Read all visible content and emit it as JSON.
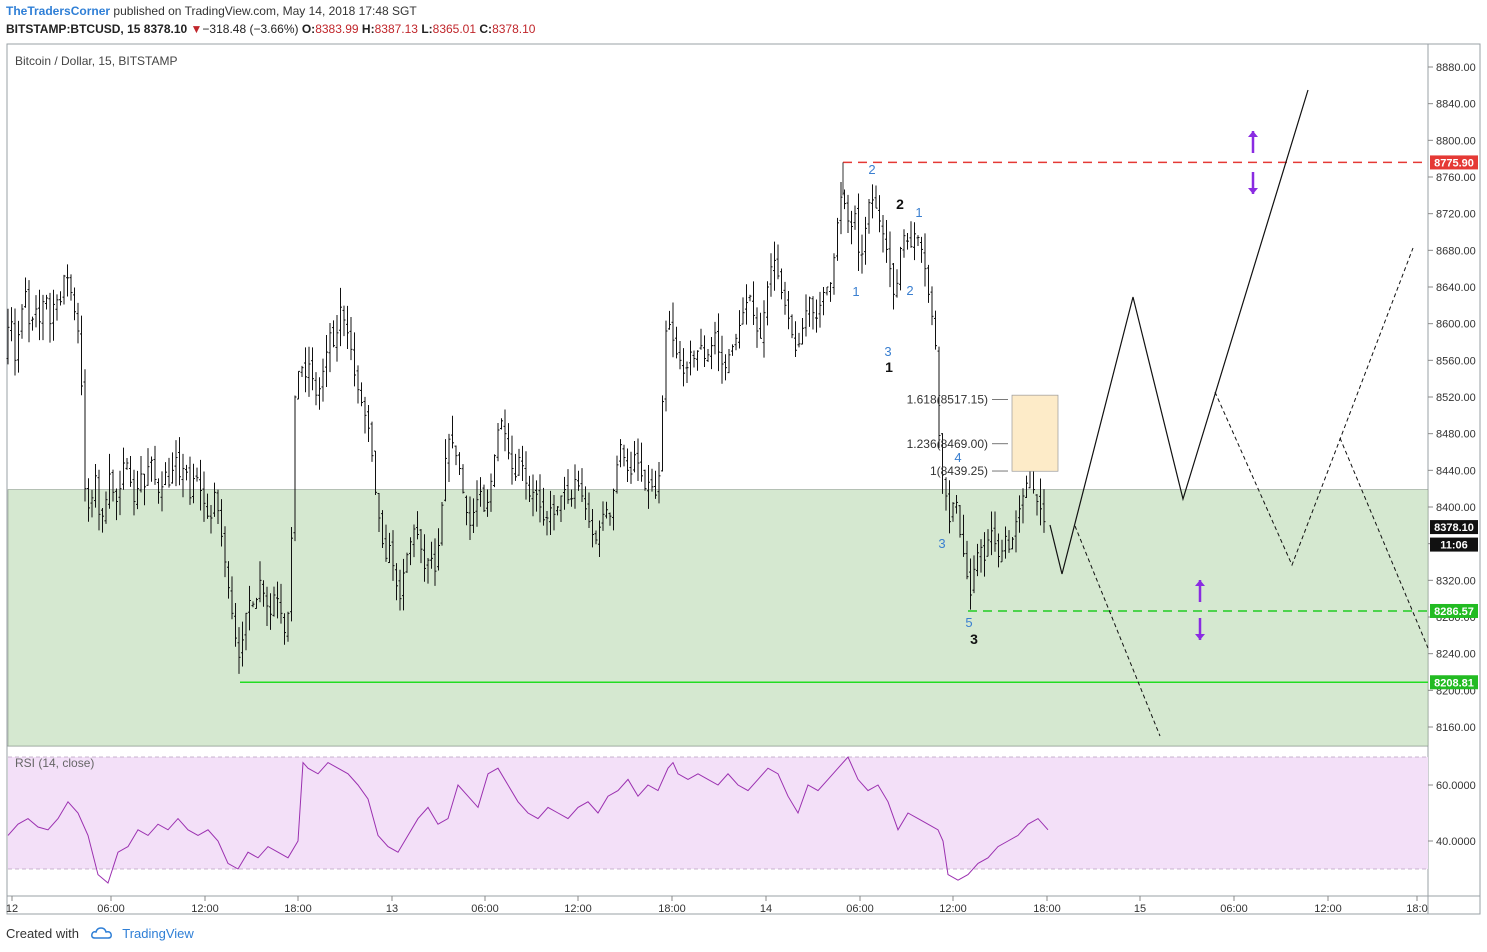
{
  "header": {
    "publisher": "TheTradersCorner",
    "published_text": "published on TradingView.com, May 14, 2018 17:48 SGT",
    "symbol": "BITSTAMP:BTCUSD, 15",
    "last": "8378.10",
    "change": "−318.48 (−3.66%)",
    "o_label": "O:",
    "o": "8383.99",
    "h_label": "H:",
    "h": "8387.13",
    "l_label": "L:",
    "l": "8365.01",
    "c_label": "C:",
    "c": "8378.10"
  },
  "footer": {
    "created_with": "Created with",
    "brand": "TradingView"
  },
  "colors": {
    "up_arrow": "#8a2be2",
    "resistance": "#e53935",
    "support_dashed": "#22cc22",
    "support_solid": "#22dd22",
    "zone_fill": "#d5e8d0",
    "rsi_fill": "#f3e0f8",
    "rsi_line": "#9b30b0",
    "fib_box": "#fdebc8",
    "wave_label_blue": "#3a7fd0"
  },
  "chart_data": [
    {
      "type": "candlestick",
      "title": "Bitcoin / Dollar, 15, BITSTAMP",
      "y_ticks": [
        "8880.00",
        "8840.00",
        "8800.00",
        "8760.00",
        "8720.00",
        "8680.00",
        "8640.00",
        "8600.00",
        "8560.00",
        "8520.00",
        "8480.00",
        "8440.00",
        "8400.00",
        "8360.00",
        "8320.00",
        "8280.00",
        "8240.00",
        "8200.00",
        "8160.00"
      ],
      "ylim": [
        8130,
        8905
      ],
      "x_ticks": [
        "12",
        "06:00",
        "12:00",
        "18:00",
        "13",
        "06:00",
        "12:00",
        "18:00",
        "14",
        "06:00",
        "12:00",
        "18:00",
        "15",
        "06:00",
        "12:00",
        "18:0"
      ],
      "price_labels": [
        {
          "text": "8775.90",
          "value": 8775.9,
          "color": "#e53935"
        },
        {
          "text": "8378.10",
          "value": 8378.1,
          "color": "#111111"
        },
        {
          "text": "11:06",
          "value": 8359,
          "color": "#111111"
        },
        {
          "text": "8286.57",
          "value": 8286.57,
          "color": "#22bb22"
        },
        {
          "text": "8208.81",
          "value": 8208.81,
          "color": "#22bb22"
        }
      ],
      "levels": {
        "resistance": 8775.9,
        "support_dashed": 8286.57,
        "support_solid": 8208.81,
        "zone_top": 8419
      },
      "fib_labels": [
        "1.618(8517.15)",
        "1.236(8469.00)",
        "1(8439.25)"
      ],
      "wave_labels": [
        "2",
        "2",
        "1",
        "1",
        "3",
        "1",
        "2",
        "4",
        "3",
        "5",
        "3"
      ],
      "close_path": [
        [
          0,
          8640
        ],
        [
          5,
          8560
        ],
        [
          10,
          8620
        ],
        [
          15,
          8560
        ],
        [
          20,
          8600
        ],
        [
          25,
          8640
        ],
        [
          30,
          8590
        ],
        [
          35,
          8620
        ],
        [
          40,
          8600
        ],
        [
          45,
          8640
        ],
        [
          50,
          8600
        ],
        [
          55,
          8630
        ],
        [
          60,
          8620
        ],
        [
          65,
          8660
        ],
        [
          70,
          8640
        ],
        [
          75,
          8610
        ],
        [
          80,
          8580
        ],
        [
          85,
          8420
        ],
        [
          90,
          8390
        ],
        [
          95,
          8440
        ],
        [
          100,
          8380
        ],
        [
          105,
          8400
        ],
        [
          110,
          8440
        ],
        [
          115,
          8400
        ],
        [
          120,
          8420
        ],
        [
          125,
          8460
        ],
        [
          130,
          8430
        ],
        [
          135,
          8400
        ],
        [
          140,
          8440
        ],
        [
          145,
          8420
        ],
        [
          150,
          8460
        ],
        [
          155,
          8430
        ],
        [
          160,
          8410
        ],
        [
          165,
          8440
        ],
        [
          170,
          8420
        ],
        [
          175,
          8460
        ],
        [
          180,
          8430
        ],
        [
          185,
          8450
        ],
        [
          190,
          8410
        ],
        [
          195,
          8440
        ],
        [
          200,
          8420
        ],
        [
          205,
          8400
        ],
        [
          210,
          8380
        ],
        [
          215,
          8420
        ],
        [
          220,
          8380
        ],
        [
          225,
          8340
        ],
        [
          230,
          8300
        ],
        [
          235,
          8260
        ],
        [
          240,
          8230
        ],
        [
          245,
          8280
        ],
        [
          250,
          8300
        ],
        [
          255,
          8290
        ],
        [
          260,
          8320
        ],
        [
          265,
          8300
        ],
        [
          270,
          8280
        ],
        [
          275,
          8310
        ],
        [
          280,
          8290
        ],
        [
          285,
          8260
        ],
        [
          290,
          8300
        ],
        [
          295,
          8520
        ],
        [
          300,
          8560
        ],
        [
          305,
          8540
        ],
        [
          310,
          8560
        ],
        [
          315,
          8520
        ],
        [
          320,
          8530
        ],
        [
          325,
          8560
        ],
        [
          330,
          8590
        ],
        [
          335,
          8570
        ],
        [
          340,
          8620
        ],
        [
          345,
          8600
        ],
        [
          350,
          8580
        ],
        [
          355,
          8540
        ],
        [
          360,
          8520
        ],
        [
          365,
          8500
        ],
        [
          370,
          8480
        ],
        [
          375,
          8420
        ],
        [
          380,
          8380
        ],
        [
          385,
          8340
        ],
        [
          390,
          8360
        ],
        [
          395,
          8320
        ],
        [
          400,
          8300
        ],
        [
          405,
          8340
        ],
        [
          410,
          8360
        ],
        [
          415,
          8380
        ],
        [
          420,
          8360
        ],
        [
          425,
          8330
        ],
        [
          430,
          8350
        ],
        [
          435,
          8330
        ],
        [
          440,
          8370
        ],
        [
          445,
          8450
        ],
        [
          450,
          8480
        ],
        [
          455,
          8460
        ],
        [
          460,
          8440
        ],
        [
          465,
          8400
        ],
        [
          470,
          8380
        ],
        [
          475,
          8400
        ],
        [
          480,
          8420
        ],
        [
          485,
          8390
        ],
        [
          490,
          8420
        ],
        [
          495,
          8460
        ],
        [
          500,
          8500
        ],
        [
          505,
          8480
        ],
        [
          510,
          8450
        ],
        [
          515,
          8430
        ],
        [
          520,
          8460
        ],
        [
          525,
          8430
        ],
        [
          530,
          8410
        ],
        [
          535,
          8420
        ],
        [
          540,
          8400
        ],
        [
          545,
          8380
        ],
        [
          550,
          8400
        ],
        [
          555,
          8390
        ],
        [
          560,
          8410
        ],
        [
          565,
          8420
        ],
        [
          570,
          8400
        ],
        [
          575,
          8430
        ],
        [
          580,
          8420
        ],
        [
          585,
          8400
        ],
        [
          590,
          8380
        ],
        [
          595,
          8360
        ],
        [
          600,
          8380
        ],
        [
          605,
          8400
        ],
        [
          610,
          8390
        ],
        [
          615,
          8430
        ],
        [
          620,
          8470
        ],
        [
          625,
          8450
        ],
        [
          630,
          8430
        ],
        [
          635,
          8460
        ],
        [
          640,
          8440
        ],
        [
          645,
          8420
        ],
        [
          650,
          8430
        ],
        [
          655,
          8410
        ],
        [
          660,
          8440
        ],
        [
          665,
          8590
        ],
        [
          670,
          8600
        ],
        [
          675,
          8570
        ],
        [
          680,
          8560
        ],
        [
          685,
          8540
        ],
        [
          690,
          8570
        ],
        [
          695,
          8560
        ],
        [
          700,
          8580
        ],
        [
          705,
          8560
        ],
        [
          710,
          8570
        ],
        [
          715,
          8590
        ],
        [
          720,
          8560
        ],
        [
          725,
          8550
        ],
        [
          730,
          8570
        ],
        [
          735,
          8580
        ],
        [
          740,
          8600
        ],
        [
          745,
          8620
        ],
        [
          750,
          8630
        ],
        [
          755,
          8600
        ],
        [
          760,
          8580
        ],
        [
          765,
          8620
        ],
        [
          770,
          8660
        ],
        [
          775,
          8670
        ],
        [
          780,
          8640
        ],
        [
          785,
          8620
        ],
        [
          790,
          8600
        ],
        [
          795,
          8570
        ],
        [
          800,
          8580
        ],
        [
          805,
          8610
        ],
        [
          810,
          8630
        ],
        [
          815,
          8600
        ],
        [
          820,
          8620
        ],
        [
          825,
          8640
        ],
        [
          830,
          8640
        ],
        [
          835,
          8680
        ],
        [
          840,
          8740
        ],
        [
          845,
          8730
        ],
        [
          850,
          8700
        ],
        [
          855,
          8720
        ],
        [
          860,
          8660
        ],
        [
          865,
          8700
        ],
        [
          870,
          8740
        ],
        [
          875,
          8730
        ],
        [
          880,
          8710
        ],
        [
          885,
          8690
        ],
        [
          890,
          8660
        ],
        [
          895,
          8620
        ],
        [
          900,
          8680
        ],
        [
          905,
          8700
        ],
        [
          910,
          8680
        ],
        [
          915,
          8700
        ],
        [
          920,
          8690
        ],
        [
          925,
          8660
        ],
        [
          930,
          8620
        ],
        [
          935,
          8590
        ],
        [
          940,
          8450
        ],
        [
          945,
          8420
        ],
        [
          950,
          8380
        ],
        [
          955,
          8420
        ],
        [
          960,
          8370
        ],
        [
          965,
          8340
        ],
        [
          970,
          8300
        ],
        [
          975,
          8340
        ],
        [
          980,
          8360
        ],
        [
          985,
          8340
        ],
        [
          990,
          8380
        ],
        [
          995,
          8360
        ],
        [
          1000,
          8340
        ],
        [
          1005,
          8370
        ],
        [
          1010,
          8350
        ],
        [
          1015,
          8380
        ],
        [
          1020,
          8400
        ],
        [
          1025,
          8420
        ],
        [
          1030,
          8440
        ],
        [
          1035,
          8410
        ],
        [
          1040,
          8400
        ],
        [
          1045,
          8380
        ]
      ]
    },
    {
      "type": "line",
      "title": "RSI (14, close)",
      "y_ticks": [
        "60.0000",
        "40.0000"
      ],
      "bands": [
        70,
        30
      ],
      "ylim": [
        20,
        75
      ],
      "x": [
        0,
        10,
        20,
        30,
        40,
        50,
        60,
        70,
        80,
        90,
        100,
        110,
        120,
        130,
        140,
        150,
        160,
        170,
        180,
        190,
        200,
        210,
        220,
        230,
        240,
        250,
        260,
        270,
        280,
        290,
        295,
        300,
        310,
        320,
        330,
        340,
        350,
        360,
        370,
        380,
        390,
        400,
        410,
        420,
        430,
        440,
        450,
        460,
        470,
        480,
        490,
        500,
        510,
        520,
        530,
        540,
        550,
        560,
        570,
        580,
        590,
        600,
        610,
        620,
        630,
        640,
        650,
        660,
        665,
        670,
        680,
        690,
        700,
        710,
        720,
        730,
        740,
        750,
        760,
        770,
        780,
        790,
        800,
        810,
        820,
        830,
        840,
        850,
        860,
        870,
        880,
        890,
        900,
        910,
        920,
        930,
        935,
        940,
        950,
        960,
        970,
        980,
        990,
        1000,
        1010,
        1020,
        1030,
        1040
      ],
      "values": [
        42,
        46,
        48,
        45,
        44,
        48,
        54,
        50,
        42,
        28,
        25,
        36,
        38,
        44,
        42,
        46,
        44,
        48,
        44,
        42,
        44,
        40,
        32,
        30,
        36,
        34,
        38,
        36,
        34,
        40,
        68,
        66,
        64,
        68,
        66,
        64,
        60,
        55,
        42,
        38,
        36,
        42,
        48,
        52,
        46,
        48,
        60,
        56,
        52,
        64,
        66,
        60,
        54,
        50,
        48,
        52,
        50,
        48,
        52,
        54,
        50,
        56,
        58,
        62,
        56,
        60,
        58,
        66,
        68,
        64,
        62,
        64,
        62,
        60,
        64,
        60,
        58,
        62,
        66,
        64,
        56,
        50,
        60,
        58,
        62,
        66,
        70,
        62,
        58,
        60,
        54,
        44,
        50,
        48,
        46,
        44,
        40,
        28,
        26,
        28,
        32,
        34,
        38,
        40,
        42,
        46,
        48,
        44
      ]
    }
  ]
}
